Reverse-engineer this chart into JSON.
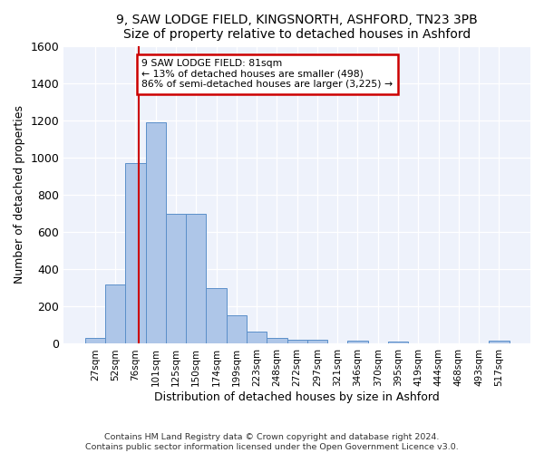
{
  "title1": "9, SAW LODGE FIELD, KINGSNORTH, ASHFORD, TN23 3PB",
  "title2": "Size of property relative to detached houses in Ashford",
  "xlabel": "Distribution of detached houses by size in Ashford",
  "ylabel": "Number of detached properties",
  "footer1": "Contains HM Land Registry data © Crown copyright and database right 2024.",
  "footer2": "Contains public sector information licensed under the Open Government Licence v3.0.",
  "annotation_line1": "9 SAW LODGE FIELD: 81sqm",
  "annotation_line2": "← 13% of detached houses are smaller (498)",
  "annotation_line3": "86% of semi-detached houses are larger (3,225) →",
  "bar_color": "#aec6e8",
  "bar_edge_color": "#5b8fc9",
  "vline_color": "#cc0000",
  "annotation_box_color": "#cc0000",
  "background_color": "#eef2fb",
  "categories": [
    "27sqm",
    "52sqm",
    "76sqm",
    "101sqm",
    "125sqm",
    "150sqm",
    "174sqm",
    "199sqm",
    "223sqm",
    "248sqm",
    "272sqm",
    "297sqm",
    "321sqm",
    "346sqm",
    "370sqm",
    "395sqm",
    "419sqm",
    "444sqm",
    "468sqm",
    "493sqm",
    "517sqm"
  ],
  "values": [
    30,
    320,
    970,
    1190,
    700,
    700,
    300,
    155,
    65,
    30,
    20,
    20,
    0,
    15,
    0,
    10,
    0,
    0,
    0,
    0,
    15
  ],
  "vline_x": 2.18,
  "ylim": [
    0,
    1600
  ],
  "yticks": [
    0,
    200,
    400,
    600,
    800,
    1000,
    1200,
    1400,
    1600
  ]
}
